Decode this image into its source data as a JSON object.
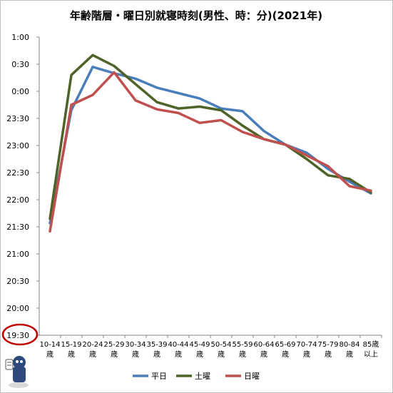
{
  "chart_data": {
    "type": "line",
    "title": "年齢階層・曜日別就寝時刻(男性、時：分)(2021年)",
    "y_tick_labels": [
      "1:00",
      "0:30",
      "0:00",
      "23:30",
      "23:00",
      "22:30",
      "22:00",
      "21:30",
      "21:00",
      "20:30",
      "20:00",
      "19:30"
    ],
    "ylim_minutes": [
      1170,
      1500
    ],
    "categories": [
      {
        "line1": "10-14",
        "line2": "歳"
      },
      {
        "line1": "15-19",
        "line2": "歳"
      },
      {
        "line1": "20-24",
        "line2": "歳"
      },
      {
        "line1": "25-29",
        "line2": "歳"
      },
      {
        "line1": "30-34",
        "line2": "歳"
      },
      {
        "line1": "35-39",
        "line2": "歳"
      },
      {
        "line1": "40-44",
        "line2": "歳"
      },
      {
        "line1": "45-49",
        "line2": "歳"
      },
      {
        "line1": "50-54",
        "line2": "歳"
      },
      {
        "line1": "55-59",
        "line2": "歳"
      },
      {
        "line1": "60-64",
        "line2": "歳"
      },
      {
        "line1": "65-69",
        "line2": "歳"
      },
      {
        "line1": "70-74",
        "line2": "歳"
      },
      {
        "line1": "75-79",
        "line2": "歳"
      },
      {
        "line1": "80-84",
        "line2": "歳"
      },
      {
        "line1": "85歳",
        "line2": "以上"
      }
    ],
    "series": [
      {
        "name": "平日",
        "color": "#4a7ebb",
        "values": [
          1294,
          1419,
          1467,
          1460,
          1454,
          1444,
          1438,
          1432,
          1421,
          1418,
          1396,
          1381,
          1372,
          1354,
          1340,
          1327
        ]
      },
      {
        "name": "土曜",
        "color": "#4f6228",
        "values": [
          1299,
          1458,
          1480,
          1468,
          1448,
          1428,
          1421,
          1423,
          1419,
          1402,
          1387,
          1381,
          1365,
          1347,
          1343,
          1328
        ]
      },
      {
        "name": "日曜",
        "color": "#c0504d",
        "values": [
          1285,
          1425,
          1436,
          1461,
          1430,
          1420,
          1416,
          1405,
          1408,
          1395,
          1387,
          1381,
          1369,
          1357,
          1335,
          1330
        ]
      }
    ],
    "legend_position": "bottom",
    "grid": false,
    "highlighted_tick": "19:30"
  }
}
